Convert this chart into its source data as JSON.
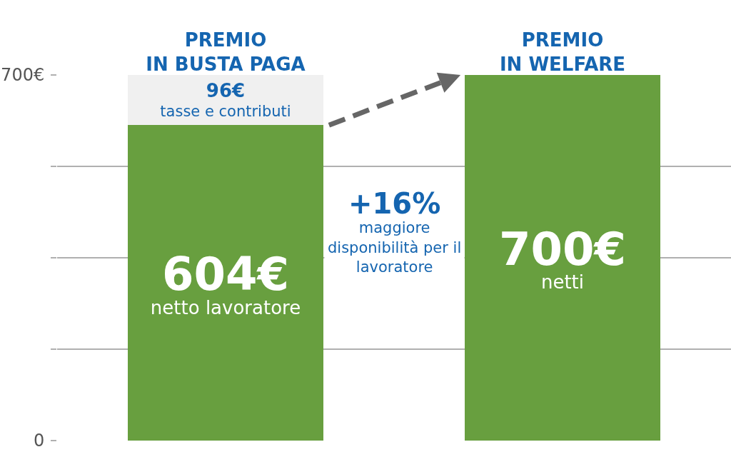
{
  "chart_data": {
    "type": "bar",
    "stacked": true,
    "categories": [
      "PREMIO\nIN BUSTA PAGA",
      "PREMIO\nIN WELFARE"
    ],
    "series": [
      {
        "color": "#689f3f",
        "values": [
          604,
          700
        ],
        "value_labels": [
          "604€\nnetto lavoratore",
          "700€\nnetti"
        ]
      },
      {
        "color": "#f0f0f0",
        "values": [
          96,
          null
        ],
        "value_labels": [
          "96€\ntasse e contributi",
          null
        ]
      }
    ],
    "ylim": [
      0,
      700
    ],
    "yticks": [
      0,
      {
        "value": 175,
        "label": null
      },
      {
        "value": 350,
        "label": null
      },
      {
        "value": 525,
        "label": null
      },
      {
        "value": 700,
        "label": "700€"
      }
    ],
    "grid": "y",
    "annotations": [
      "+16%\nmaggiore\ndisponibilità per il\nlavoratore"
    ]
  }
}
